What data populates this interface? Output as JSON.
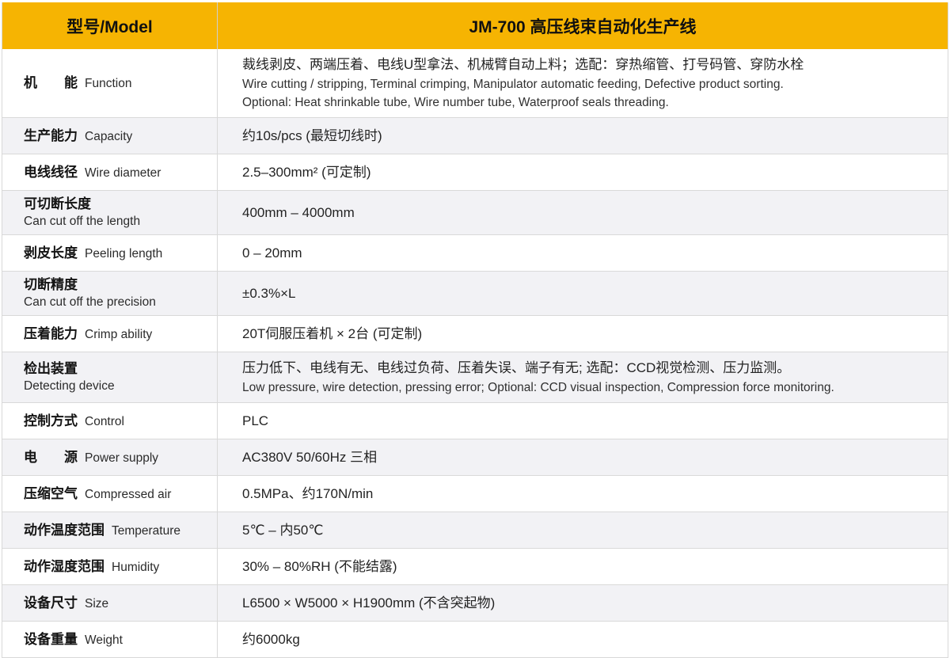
{
  "accent_color": "#f6b402",
  "stripe_color": "#f2f2f5",
  "border_color": "#d9d9d9",
  "header": {
    "model_label": "型号/Model",
    "model_value": "JM-700 高压线束自动化生产线"
  },
  "rows": [
    {
      "label_zh": "机　　能",
      "label_en": "Function",
      "two_line": false,
      "values": [
        "裁线剥皮、两端压着、电线U型拿法、机械臂自动上料；选配：穿热缩管、打号码管、穿防水栓",
        "Wire cutting / stripping, Terminal crimping, Manipulator automatic feeding, Defective product sorting.",
        "Optional: Heat shrinkable tube, Wire number tube,  Waterproof seals threading."
      ]
    },
    {
      "label_zh": "生产能力",
      "label_en": "Capacity",
      "two_line": false,
      "values": [
        "约10s/pcs (最短切线时)"
      ]
    },
    {
      "label_zh": "电线线径",
      "label_en": "Wire diameter",
      "two_line": false,
      "values": [
        "2.5–300mm² (可定制)"
      ]
    },
    {
      "label_zh": "可切断长度",
      "label_en": "Can cut off the length",
      "two_line": true,
      "values": [
        "400mm – 4000mm"
      ]
    },
    {
      "label_zh": "剥皮长度",
      "label_en": "Peeling length",
      "two_line": false,
      "values": [
        "0 – 20mm"
      ]
    },
    {
      "label_zh": "切断精度",
      "label_en": "Can cut off the precision",
      "two_line": true,
      "values": [
        "±0.3%×L"
      ]
    },
    {
      "label_zh": "压着能力",
      "label_en": "Crimp ability",
      "two_line": false,
      "values": [
        "20T伺服压着机 × 2台 (可定制)"
      ]
    },
    {
      "label_zh": "检出装置",
      "label_en": "Detecting device",
      "two_line": true,
      "values": [
        "压力低下、电线有无、电线过负荷、压着失误、端子有无; 选配：CCD视觉检测、压力监测。",
        "Low pressure, wire detection,  pressing error; Optional: CCD visual inspection, Compression force monitoring."
      ]
    },
    {
      "label_zh": "控制方式",
      "label_en": "Control",
      "two_line": false,
      "values": [
        "PLC"
      ]
    },
    {
      "label_zh": "电　　源",
      "label_en": "Power supply",
      "two_line": false,
      "values": [
        "AC380V 50/60Hz 三相"
      ]
    },
    {
      "label_zh": "压缩空气",
      "label_en": "Compressed air",
      "two_line": false,
      "values": [
        "0.5MPa、约170N/min"
      ]
    },
    {
      "label_zh": "动作温度范围",
      "label_en": "Temperature",
      "two_line": false,
      "values": [
        "5℃ – 内50℃"
      ]
    },
    {
      "label_zh": "动作湿度范围",
      "label_en": "Humidity",
      "two_line": false,
      "values": [
        "30% – 80%RH (不能结露)"
      ]
    },
    {
      "label_zh": "设备尺寸",
      "label_en": "Size",
      "two_line": false,
      "values": [
        "L6500 × W5000 × H1900mm (不含突起物)"
      ]
    },
    {
      "label_zh": "设备重量",
      "label_en": "Weight",
      "two_line": false,
      "values": [
        "约6000kg"
      ]
    }
  ]
}
